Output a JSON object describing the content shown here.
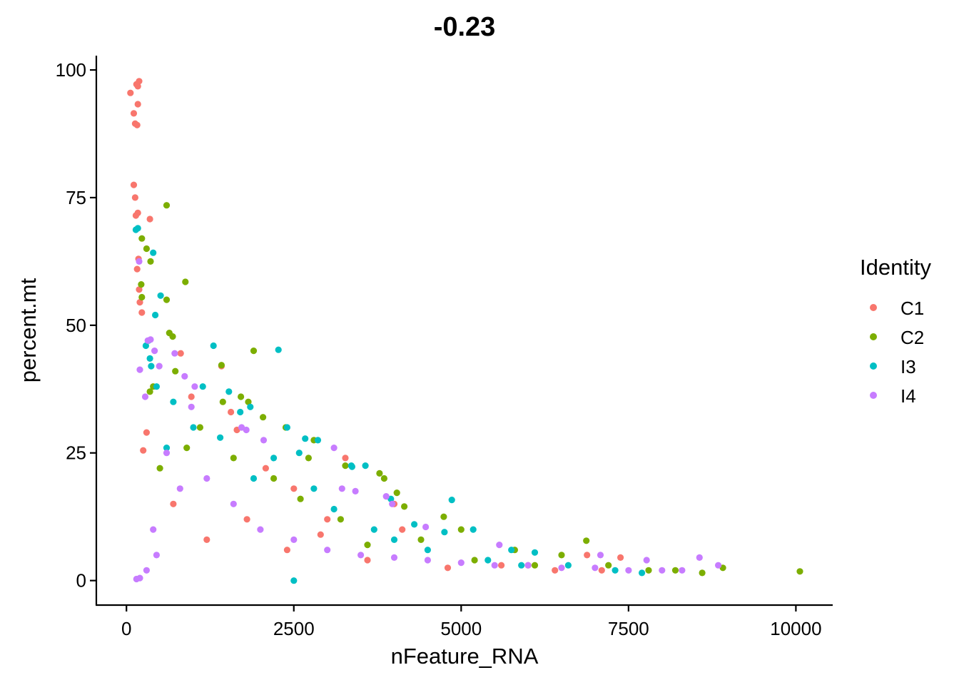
{
  "chart_data": {
    "type": "scatter",
    "title": "-0.23",
    "xlabel": "nFeature_RNA",
    "ylabel": "percent.mt",
    "xlim": [
      -450,
      10550
    ],
    "ylim": [
      -4.8,
      102.8
    ],
    "x_ticks": [
      0,
      2500,
      5000,
      7500,
      10000
    ],
    "x_tick_labels": [
      "0",
      "2500",
      "5000",
      "7500",
      "10000"
    ],
    "y_ticks": [
      0,
      25,
      50,
      75,
      100
    ],
    "y_tick_labels": [
      "0",
      "25",
      "50",
      "75",
      "100"
    ],
    "grid": false,
    "legend": {
      "title": "Identity",
      "placement": "right"
    },
    "series": [
      {
        "name": "C1",
        "color": "#F8766D",
        "points": [
          [
            60,
            95.5
          ],
          [
            110,
            91.5
          ],
          [
            130,
            89.5
          ],
          [
            160,
            89.2
          ],
          [
            150,
            97.2
          ],
          [
            170,
            96.8
          ],
          [
            190,
            97.8
          ],
          [
            170,
            93.3
          ],
          [
            110,
            77.5
          ],
          [
            130,
            75
          ],
          [
            140,
            71.5
          ],
          [
            170,
            72
          ],
          [
            180,
            63
          ],
          [
            160,
            61
          ],
          [
            190,
            57
          ],
          [
            200,
            54.5
          ],
          [
            230,
            52.5
          ],
          [
            250,
            25.5
          ],
          [
            300,
            29
          ],
          [
            350,
            70.8
          ],
          [
            810,
            44.5
          ],
          [
            970,
            36
          ],
          [
            1560,
            33
          ],
          [
            1420,
            42
          ],
          [
            1650,
            29.5
          ],
          [
            3270,
            24
          ],
          [
            2500,
            18
          ],
          [
            3000,
            12
          ],
          [
            2080,
            22
          ],
          [
            4120,
            10
          ],
          [
            6880,
            5
          ],
          [
            7380,
            4.5
          ],
          [
            6000,
            3
          ],
          [
            700,
            15
          ],
          [
            1200,
            8
          ],
          [
            1800,
            12
          ],
          [
            2400,
            6
          ],
          [
            3600,
            4
          ],
          [
            4800,
            2.5
          ],
          [
            5600,
            3
          ],
          [
            6400,
            2
          ],
          [
            7100,
            2
          ],
          [
            4000,
            15
          ],
          [
            2900,
            9
          ]
        ]
      },
      {
        "name": "C2",
        "color": "#7CAE00",
        "points": [
          [
            600,
            73.5
          ],
          [
            230,
            67
          ],
          [
            300,
            65
          ],
          [
            360,
            62.5
          ],
          [
            220,
            58
          ],
          [
            230,
            55.5
          ],
          [
            600,
            55
          ],
          [
            880,
            58.5
          ],
          [
            640,
            48.5
          ],
          [
            690,
            47.8
          ],
          [
            1900,
            45
          ],
          [
            1420,
            42.2
          ],
          [
            730,
            41
          ],
          [
            350,
            37
          ],
          [
            400,
            38
          ],
          [
            1820,
            35
          ],
          [
            1710,
            36
          ],
          [
            2040,
            32
          ],
          [
            1440,
            35
          ],
          [
            2380,
            30
          ],
          [
            2720,
            24
          ],
          [
            2800,
            27.5
          ],
          [
            3270,
            22.5
          ],
          [
            3780,
            21
          ],
          [
            3850,
            20
          ],
          [
            4040,
            17.2
          ],
          [
            4150,
            14.5
          ],
          [
            4740,
            12.5
          ],
          [
            5000,
            10
          ],
          [
            6870,
            7.8
          ],
          [
            8910,
            2.5
          ],
          [
            10060,
            1.8
          ],
          [
            6500,
            5
          ],
          [
            5800,
            6
          ],
          [
            7200,
            3
          ],
          [
            4400,
            8
          ],
          [
            2200,
            20
          ],
          [
            1100,
            30
          ],
          [
            900,
            26
          ],
          [
            500,
            22
          ],
          [
            1600,
            24
          ],
          [
            2600,
            16
          ],
          [
            3200,
            12
          ],
          [
            3600,
            7
          ],
          [
            5200,
            4
          ],
          [
            6100,
            3
          ],
          [
            7800,
            2
          ],
          [
            8200,
            2
          ],
          [
            8600,
            1.5
          ]
        ]
      },
      {
        "name": "I3",
        "color": "#00BFC4",
        "points": [
          [
            140,
            68.7
          ],
          [
            170,
            69
          ],
          [
            400,
            64.2
          ],
          [
            510,
            55.8
          ],
          [
            430,
            52
          ],
          [
            330,
            47
          ],
          [
            350,
            43.5
          ],
          [
            370,
            42
          ],
          [
            290,
            46
          ],
          [
            1300,
            46
          ],
          [
            2270,
            45.2
          ],
          [
            1140,
            38
          ],
          [
            1530,
            37
          ],
          [
            1850,
            34
          ],
          [
            1700,
            33
          ],
          [
            2400,
            30
          ],
          [
            2670,
            27.8
          ],
          [
            2860,
            27.5
          ],
          [
            2580,
            25
          ],
          [
            3360,
            22.5
          ],
          [
            3370,
            22.3
          ],
          [
            3570,
            22.5
          ],
          [
            3950,
            16
          ],
          [
            4300,
            11
          ],
          [
            4860,
            15.8
          ],
          [
            4750,
            9.5
          ],
          [
            5180,
            10
          ],
          [
            5750,
            6
          ],
          [
            6100,
            5.5
          ],
          [
            2500,
            0
          ],
          [
            2800,
            18
          ],
          [
            1000,
            30
          ],
          [
            700,
            35
          ],
          [
            450,
            38
          ],
          [
            1900,
            20
          ],
          [
            3100,
            14
          ],
          [
            4000,
            8
          ],
          [
            5400,
            4
          ],
          [
            6600,
            3
          ],
          [
            7300,
            2
          ],
          [
            600,
            26
          ],
          [
            1400,
            28
          ],
          [
            2200,
            24
          ],
          [
            3700,
            10
          ],
          [
            4500,
            6
          ],
          [
            5900,
            3
          ],
          [
            7700,
            1.5
          ]
        ]
      },
      {
        "name": "I4",
        "color": "#C77CFF",
        "points": [
          [
            190,
            62.5
          ],
          [
            200,
            41.3
          ],
          [
            320,
            47
          ],
          [
            360,
            47.2
          ],
          [
            280,
            36
          ],
          [
            420,
            45
          ],
          [
            490,
            42
          ],
          [
            720,
            44.5
          ],
          [
            870,
            40
          ],
          [
            1020,
            38
          ],
          [
            970,
            34
          ],
          [
            1720,
            30
          ],
          [
            1790,
            29.5
          ],
          [
            2050,
            27.5
          ],
          [
            3100,
            26
          ],
          [
            3220,
            18
          ],
          [
            3420,
            17.5
          ],
          [
            3880,
            16.5
          ],
          [
            3970,
            15
          ],
          [
            4470,
            10.5
          ],
          [
            5570,
            7
          ],
          [
            7080,
            5
          ],
          [
            7770,
            4
          ],
          [
            8560,
            4.5
          ],
          [
            8840,
            3
          ],
          [
            1200,
            20
          ],
          [
            1600,
            15
          ],
          [
            2000,
            10
          ],
          [
            2500,
            8
          ],
          [
            3000,
            6
          ],
          [
            3500,
            5
          ],
          [
            4000,
            4.5
          ],
          [
            4500,
            4
          ],
          [
            5000,
            3.5
          ],
          [
            5500,
            3
          ],
          [
            6000,
            3
          ],
          [
            6500,
            2.5
          ],
          [
            7000,
            2.5
          ],
          [
            7500,
            2
          ],
          [
            8000,
            2
          ],
          [
            8300,
            2
          ],
          [
            600,
            25
          ],
          [
            800,
            18
          ],
          [
            400,
            10
          ],
          [
            450,
            5
          ],
          [
            300,
            2
          ],
          [
            200,
            0.5
          ],
          [
            150,
            0.3
          ]
        ]
      }
    ]
  }
}
